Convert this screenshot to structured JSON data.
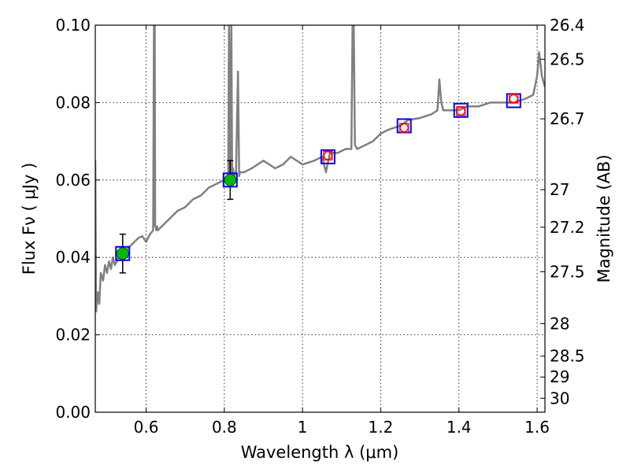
{
  "chart_data": {
    "type": "line",
    "title": "",
    "xlabel": "Wavelength  λ (μm)",
    "ylabel": "Flux  Fν  ( μJy )",
    "ylabel_right": "Magnitude (AB)",
    "xlim": [
      0.47,
      1.62
    ],
    "ylim": [
      0.0,
      0.1
    ],
    "grid": true,
    "x_ticks": [
      0.6,
      0.8,
      1.0,
      1.2,
      1.4,
      1.6
    ],
    "x_tick_labels": [
      "0.6",
      "0.8",
      "1",
      "1.2",
      "1.4",
      "1.6"
    ],
    "y_ticks": [
      0.0,
      0.02,
      0.04,
      0.06,
      0.08,
      0.1
    ],
    "y_tick_labels": [
      "0.00",
      "0.02",
      "0.04",
      "0.06",
      "0.08",
      "0.10"
    ],
    "right_ticks": [
      {
        "label": "26.4",
        "flux": 0.1
      },
      {
        "label": "26.5",
        "flux": 0.0912
      },
      {
        "label": "26.7",
        "flux": 0.0758
      },
      {
        "label": "27",
        "flux": 0.0575
      },
      {
        "label": "27.2",
        "flux": 0.0478
      },
      {
        "label": "27.5",
        "flux": 0.0363
      },
      {
        "label": "28",
        "flux": 0.0229
      },
      {
        "label": "28.5",
        "flux": 0.0145
      },
      {
        "label": "29",
        "flux": 0.0091
      },
      {
        "label": "30",
        "flux": 0.0036
      }
    ],
    "series": [
      {
        "style": "model-spectrum",
        "color": "#808080",
        "x": [
          0.47,
          0.472,
          0.476,
          0.48,
          0.484,
          0.49,
          0.495,
          0.5,
          0.505,
          0.51,
          0.515,
          0.52,
          0.53,
          0.54,
          0.55,
          0.56,
          0.57,
          0.58,
          0.59,
          0.6,
          0.61,
          0.618,
          0.62,
          0.622,
          0.623,
          0.625,
          0.626,
          0.628,
          0.63,
          0.64,
          0.66,
          0.68,
          0.7,
          0.72,
          0.74,
          0.76,
          0.78,
          0.8,
          0.81,
          0.812,
          0.815,
          0.818,
          0.82,
          0.822,
          0.825,
          0.83,
          0.835,
          0.838,
          0.84,
          0.85,
          0.87,
          0.9,
          0.93,
          0.95,
          0.97,
          1.0,
          1.03,
          1.05,
          1.06,
          1.07,
          1.09,
          1.11,
          1.125,
          1.128,
          1.131,
          1.134,
          1.14,
          1.16,
          1.18,
          1.2,
          1.22,
          1.25,
          1.27,
          1.3,
          1.33,
          1.345,
          1.35,
          1.355,
          1.36,
          1.38,
          1.4,
          1.42,
          1.45,
          1.48,
          1.5,
          1.54,
          1.57,
          1.59,
          1.6,
          1.605,
          1.612,
          1.62
        ],
        "y": [
          0.065,
          0.026,
          0.031,
          0.028,
          0.036,
          0.034,
          0.038,
          0.036,
          0.039,
          0.037,
          0.04,
          0.038,
          0.04,
          0.041,
          0.042,
          0.043,
          0.044,
          0.045,
          0.0455,
          0.044,
          0.046,
          0.047,
          0.1,
          0.1,
          0.048,
          0.048,
          0.047,
          0.048,
          0.047,
          0.048,
          0.05,
          0.052,
          0.053,
          0.055,
          0.056,
          0.058,
          0.059,
          0.06,
          0.06,
          0.1,
          0.061,
          0.1,
          0.06,
          0.063,
          0.061,
          0.062,
          0.088,
          0.061,
          0.062,
          0.062,
          0.063,
          0.065,
          0.063,
          0.064,
          0.066,
          0.064,
          0.065,
          0.066,
          0.062,
          0.067,
          0.067,
          0.068,
          0.068,
          0.1,
          0.1,
          0.069,
          0.068,
          0.069,
          0.07,
          0.072,
          0.073,
          0.074,
          0.0755,
          0.076,
          0.077,
          0.078,
          0.086,
          0.08,
          0.078,
          0.078,
          0.078,
          0.079,
          0.079,
          0.08,
          0.08,
          0.08,
          0.081,
          0.082,
          0.087,
          0.093,
          0.087,
          0.084
        ]
      },
      {
        "style": "measured-points",
        "color": "#00bb00",
        "x": [
          0.54,
          0.815
        ],
        "y": [
          0.041,
          0.06
        ],
        "yerr": [
          0.005,
          0.005
        ]
      },
      {
        "style": "model-photometry-squares",
        "color": "#0000ff",
        "x": [
          0.54,
          0.815,
          1.065,
          1.26,
          1.405,
          1.54
        ],
        "y": [
          0.041,
          0.06,
          0.066,
          0.074,
          0.078,
          0.0805
        ]
      },
      {
        "style": "predicted-points",
        "color": "#ff0000",
        "x": [
          1.065,
          1.26,
          1.405,
          1.54
        ],
        "y": [
          0.0663,
          0.0735,
          0.0778,
          0.081
        ]
      }
    ]
  }
}
